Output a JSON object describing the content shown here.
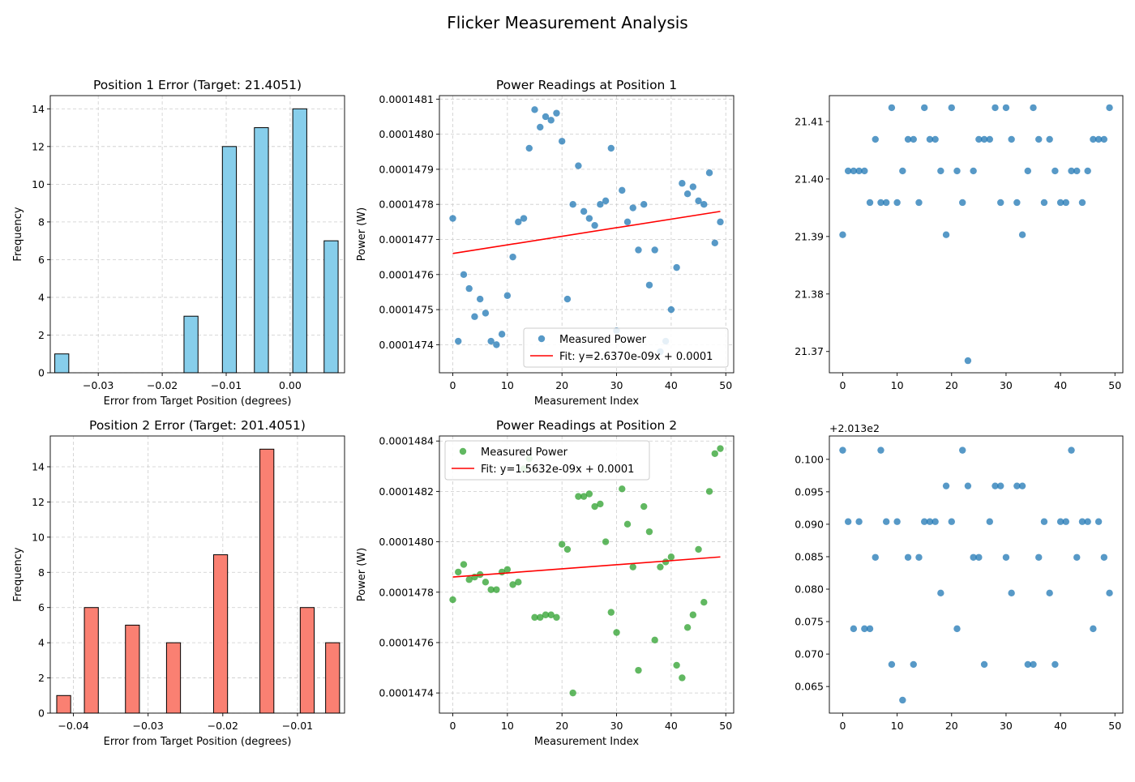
{
  "figure": {
    "suptitle": "Flicker Measurement Analysis"
  },
  "chart_data": [
    {
      "type": "bar",
      "title": "Position 1 Error (Target: 21.4051)",
      "xlabel": "Error from Target Position (degrees)",
      "ylabel": "Frequency",
      "xlim": [
        -0.0375,
        0.0085
      ],
      "ylim": [
        0,
        14.7
      ],
      "xticks": [
        -0.03,
        -0.02,
        -0.01,
        0.0
      ],
      "xtick_labels": [
        "−0.03",
        "−0.02",
        "−0.01",
        "0.00"
      ],
      "yticks": [
        0,
        2,
        4,
        6,
        8,
        10,
        12,
        14
      ],
      "grid": true,
      "bar_color": "#87ceeb",
      "bin_width": 0.00219,
      "bins": [
        {
          "center": -0.0357,
          "count": 1
        },
        {
          "center": -0.0155,
          "count": 3
        },
        {
          "center": -0.0095,
          "count": 12
        },
        {
          "center": -0.0045,
          "count": 13
        },
        {
          "center": 0.0015,
          "count": 14
        },
        {
          "center": 0.0064,
          "count": 7
        }
      ]
    },
    {
      "type": "scatter",
      "title": "Power Readings at Position 1",
      "xlabel": "Measurement Index",
      "ylabel": "Power (W)",
      "xlim": [
        -2.45,
        51.45
      ],
      "ylim": [
        0.00014732,
        0.00014811
      ],
      "xticks": [
        0,
        10,
        20,
        30,
        40,
        50
      ],
      "xtick_labels": [
        "0",
        "10",
        "20",
        "30",
        "40",
        "50"
      ],
      "yticks": [
        0.0001474,
        0.0001475,
        0.0001476,
        0.0001477,
        0.0001478,
        0.0001479,
        0.000148,
        0.0001481
      ],
      "ytick_labels": [
        "0.0001474",
        "0.0001475",
        "0.0001476",
        "0.0001477",
        "0.0001478",
        "0.0001479",
        "0.0001480",
        "0.0001481"
      ],
      "grid": true,
      "legend_position": "lower-right",
      "series": [
        {
          "name": "Measured Power",
          "kind": "scatter",
          "color": "#1f77b4",
          "x": [
            0,
            1,
            2,
            3,
            4,
            5,
            6,
            7,
            8,
            9,
            10,
            11,
            12,
            13,
            14,
            15,
            16,
            17,
            18,
            19,
            20,
            21,
            22,
            23,
            24,
            25,
            26,
            27,
            28,
            29,
            30,
            31,
            32,
            33,
            34,
            35,
            36,
            37,
            38,
            39,
            40,
            41,
            42,
            43,
            44,
            45,
            46,
            47,
            48,
            49
          ],
          "y": [
            0.00014776,
            0.00014741,
            0.0001476,
            0.00014756,
            0.00014748,
            0.00014753,
            0.00014749,
            0.00014741,
            0.0001474,
            0.00014743,
            0.00014754,
            0.00014765,
            0.00014775,
            0.00014776,
            0.00014796,
            0.00014807,
            0.00014802,
            0.00014805,
            0.00014804,
            0.00014806,
            0.00014798,
            0.00014753,
            0.0001478,
            0.00014791,
            0.00014778,
            0.00014776,
            0.00014774,
            0.0001478,
            0.00014781,
            0.00014796,
            0.00014744,
            0.00014784,
            0.00014775,
            0.00014779,
            0.00014767,
            0.0001478,
            0.00014757,
            0.00014767,
            0.00014738,
            0.00014741,
            0.0001475,
            0.00014762,
            0.00014786,
            0.00014783,
            0.00014785,
            0.00014781,
            0.0001478,
            0.00014789,
            0.00014769,
            0.00014775
          ]
        },
        {
          "name": "Fit: y=2.6370e-09x + 0.0001",
          "kind": "line",
          "color": "#ff0000",
          "x": [
            0,
            49
          ],
          "y": [
            0.00014766,
            0.00014778
          ]
        }
      ]
    },
    {
      "type": "scatter",
      "title": "",
      "xlabel": "",
      "ylabel": "",
      "xlim": [
        -2.45,
        51.45
      ],
      "ylim": [
        21.3663,
        21.4145
      ],
      "xticks": [
        0,
        10,
        20,
        30,
        40,
        50
      ],
      "xtick_labels": [
        "0",
        "10",
        "20",
        "30",
        "40",
        "50"
      ],
      "yticks": [
        21.37,
        21.38,
        21.39,
        21.4,
        21.41
      ],
      "ytick_labels": [
        "21.37",
        "21.38",
        "21.39",
        "21.40",
        "21.41"
      ],
      "grid": false,
      "series": [
        {
          "kind": "scatter",
          "color": "#1f77b4",
          "x": [
            0,
            1,
            2,
            3,
            4,
            5,
            6,
            7,
            8,
            9,
            10,
            11,
            12,
            13,
            14,
            15,
            16,
            17,
            18,
            19,
            20,
            21,
            22,
            23,
            24,
            25,
            26,
            27,
            28,
            29,
            30,
            31,
            32,
            33,
            34,
            35,
            36,
            37,
            38,
            39,
            40,
            41,
            42,
            43,
            44,
            45,
            46,
            47,
            48,
            49
          ],
          "y": [
            21.3903,
            21.4014,
            21.4014,
            21.4014,
            21.4014,
            21.3959,
            21.4069,
            21.3959,
            21.3959,
            21.4124,
            21.3959,
            21.4014,
            21.4069,
            21.4069,
            21.3959,
            21.4124,
            21.4069,
            21.4069,
            21.4014,
            21.3903,
            21.4124,
            21.4014,
            21.3959,
            21.3684,
            21.4014,
            21.4069,
            21.4069,
            21.4069,
            21.4124,
            21.3959,
            21.4124,
            21.4069,
            21.3959,
            21.3903,
            21.4014,
            21.4124,
            21.4069,
            21.3959,
            21.4069,
            21.4014,
            21.3959,
            21.3959,
            21.4014,
            21.4014,
            21.3959,
            21.4014,
            21.4069,
            21.4069,
            21.4069,
            21.4124
          ]
        }
      ]
    },
    {
      "type": "bar",
      "title": "Position 2 Error (Target: 201.4051)",
      "xlabel": "Error from Target Position (degrees)",
      "ylabel": "Frequency",
      "xlim": [
        -0.0431,
        -0.0037
      ],
      "ylim": [
        0,
        15.75
      ],
      "xticks": [
        -0.04,
        -0.03,
        -0.02,
        -0.01
      ],
      "xtick_labels": [
        "−0.04",
        "−0.03",
        "−0.02",
        "−0.01"
      ],
      "yticks": [
        0,
        2,
        4,
        6,
        8,
        10,
        12,
        14
      ],
      "grid": true,
      "bar_color": "#fa8072",
      "bin_width": 0.00187,
      "bins": [
        {
          "center": -0.0413,
          "count": 1
        },
        {
          "center": -0.0376,
          "count": 6
        },
        {
          "center": -0.0321,
          "count": 5
        },
        {
          "center": -0.0266,
          "count": 4
        },
        {
          "center": -0.0203,
          "count": 9
        },
        {
          "center": -0.0141,
          "count": 15
        },
        {
          "center": -0.0087,
          "count": 6
        },
        {
          "center": -0.0053,
          "count": 4
        }
      ]
    },
    {
      "type": "scatter",
      "title": "Power Readings at Position 2",
      "xlabel": "Measurement Index",
      "ylabel": "Power (W)",
      "xlim": [
        -2.45,
        51.45
      ],
      "ylim": [
        0.00014732,
        0.00014842
      ],
      "xticks": [
        0,
        10,
        20,
        30,
        40,
        50
      ],
      "xtick_labels": [
        "0",
        "10",
        "20",
        "30",
        "40",
        "50"
      ],
      "yticks": [
        0.0001474,
        0.0001476,
        0.0001478,
        0.000148,
        0.0001482,
        0.0001484
      ],
      "ytick_labels": [
        "0.0001474",
        "0.0001476",
        "0.0001478",
        "0.0001480",
        "0.0001482",
        "0.0001484"
      ],
      "grid": true,
      "legend_position": "upper-left",
      "series": [
        {
          "name": "Measured Power",
          "kind": "scatter",
          "color": "#2ca02c",
          "x": [
            0,
            1,
            2,
            3,
            4,
            5,
            6,
            7,
            8,
            9,
            10,
            11,
            12,
            13,
            14,
            15,
            16,
            17,
            18,
            19,
            20,
            21,
            22,
            23,
            24,
            25,
            26,
            27,
            28,
            29,
            30,
            31,
            32,
            33,
            34,
            35,
            36,
            37,
            38,
            39,
            40,
            41,
            42,
            43,
            44,
            45,
            46,
            47,
            48,
            49
          ],
          "y": [
            0.00014777,
            0.00014788,
            0.00014791,
            0.00014785,
            0.00014786,
            0.00014787,
            0.00014784,
            0.00014781,
            0.00014781,
            0.00014788,
            0.00014789,
            0.00014783,
            0.00014784,
            0.00014829,
            0.00014833,
            0.0001477,
            0.0001477,
            0.00014771,
            0.00014771,
            0.0001477,
            0.00014799,
            0.00014797,
            0.0001474,
            0.00014818,
            0.00014818,
            0.00014819,
            0.00014814,
            0.00014815,
            0.000148,
            0.00014772,
            0.00014764,
            0.00014821,
            0.00014807,
            0.0001479,
            0.00014749,
            0.00014814,
            0.00014804,
            0.00014761,
            0.0001479,
            0.00014792,
            0.00014794,
            0.00014751,
            0.00014746,
            0.00014766,
            0.00014771,
            0.00014797,
            0.00014776,
            0.0001482,
            0.00014835,
            0.00014837
          ]
        },
        {
          "name": "Fit: y=1.5632e-09x + 0.0001",
          "kind": "line",
          "color": "#ff0000",
          "x": [
            0,
            49
          ],
          "y": [
            0.00014786,
            0.00014794
          ]
        }
      ]
    },
    {
      "type": "scatter",
      "title": "",
      "xlabel": "",
      "ylabel": "",
      "offset_text": "+2.013e2",
      "xlim": [
        -2.45,
        51.45
      ],
      "ylim": [
        0.0609,
        0.1036
      ],
      "xticks": [
        0,
        10,
        20,
        30,
        40,
        50
      ],
      "xtick_labels": [
        "0",
        "10",
        "20",
        "30",
        "40",
        "50"
      ],
      "yticks": [
        0.065,
        0.07,
        0.075,
        0.08,
        0.085,
        0.09,
        0.095,
        0.1
      ],
      "ytick_labels": [
        "0.065",
        "0.070",
        "0.075",
        "0.080",
        "0.085",
        "0.090",
        "0.095",
        "0.100"
      ],
      "grid": false,
      "series": [
        {
          "kind": "scatter",
          "color": "#1f77b4",
          "x": [
            0,
            1,
            2,
            3,
            4,
            5,
            6,
            7,
            8,
            9,
            10,
            11,
            12,
            13,
            14,
            15,
            16,
            17,
            18,
            19,
            20,
            21,
            22,
            23,
            24,
            25,
            26,
            27,
            28,
            29,
            30,
            31,
            32,
            33,
            34,
            35,
            36,
            37,
            38,
            39,
            40,
            41,
            42,
            43,
            44,
            45,
            46,
            47,
            48,
            49
          ],
          "y": [
            0.1014,
            0.0904,
            0.0739,
            0.0904,
            0.0739,
            0.0739,
            0.0849,
            0.1014,
            0.0904,
            0.0684,
            0.0904,
            0.0629,
            0.0849,
            0.0684,
            0.0849,
            0.0904,
            0.0904,
            0.0904,
            0.0794,
            0.0959,
            0.0904,
            0.0739,
            0.1014,
            0.0959,
            0.0849,
            0.0849,
            0.0684,
            0.0904,
            0.0959,
            0.0959,
            0.0849,
            0.0794,
            0.0959,
            0.0959,
            0.0684,
            0.0684,
            0.0849,
            0.0904,
            0.0794,
            0.0684,
            0.0904,
            0.0904,
            0.1014,
            0.0849,
            0.0904,
            0.0904,
            0.0739,
            0.0904,
            0.0849,
            0.0794
          ]
        }
      ]
    }
  ]
}
